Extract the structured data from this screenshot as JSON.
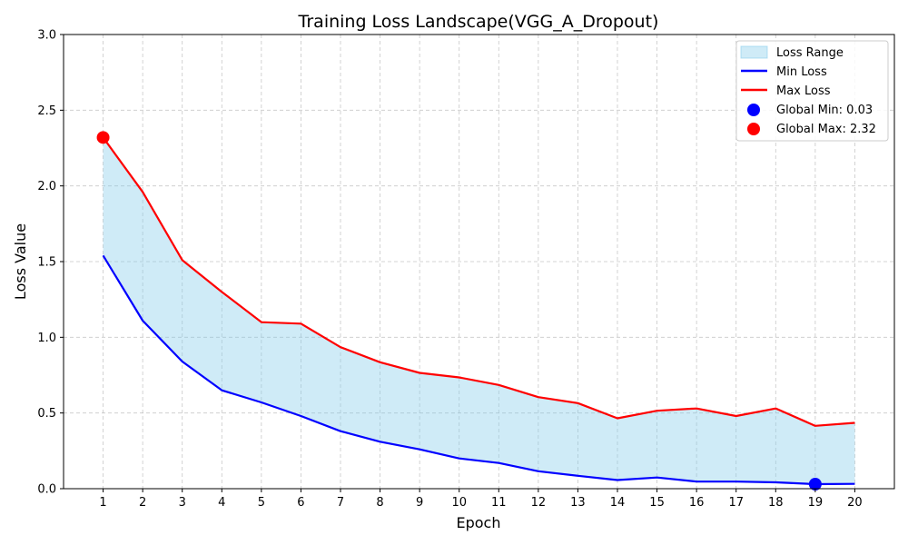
{
  "chart_data": {
    "type": "line",
    "title": "Training Loss Landscape(VGG_A_Dropout)",
    "xlabel": "Epoch",
    "ylabel": "Loss Value",
    "x": [
      1,
      2,
      3,
      4,
      5,
      6,
      7,
      8,
      9,
      10,
      11,
      12,
      13,
      14,
      15,
      16,
      17,
      18,
      19,
      20
    ],
    "xlim": [
      0,
      21
    ],
    "ylim": [
      0,
      3.0
    ],
    "yticks": [
      0.0,
      0.5,
      1.0,
      1.5,
      2.0,
      2.5,
      3.0
    ],
    "ytick_labels": [
      "0.0",
      "0.5",
      "1.0",
      "1.5",
      "2.0",
      "2.5",
      "3.0"
    ],
    "grid": true,
    "series": [
      {
        "name": "Min Loss",
        "color": "#0000ff",
        "values": [
          1.54,
          1.11,
          0.84,
          0.65,
          0.57,
          0.48,
          0.38,
          0.31,
          0.26,
          0.2,
          0.17,
          0.115,
          0.085,
          0.057,
          0.074,
          0.047,
          0.047,
          0.042,
          0.03,
          0.032
        ]
      },
      {
        "name": "Max Loss",
        "color": "#ff0000",
        "values": [
          2.32,
          1.96,
          1.51,
          1.3,
          1.1,
          1.09,
          0.935,
          0.835,
          0.765,
          0.735,
          0.685,
          0.605,
          0.565,
          0.465,
          0.515,
          0.53,
          0.48,
          0.53,
          0.415,
          0.435
        ]
      }
    ],
    "fill": {
      "name": "Loss Range",
      "color": "#87ceeb",
      "opacity": 0.4
    },
    "markers": [
      {
        "name": "Global Min: 0.03",
        "x": 19,
        "y": 0.03,
        "color": "#0000ff"
      },
      {
        "name": "Global Max: 2.32",
        "x": 1,
        "y": 2.32,
        "color": "#ff0000"
      }
    ],
    "legend": {
      "position": "top-right",
      "entries": [
        "Loss Range",
        "Min Loss",
        "Max Loss",
        "Global Min: 0.03",
        "Global Max: 2.32"
      ]
    }
  }
}
